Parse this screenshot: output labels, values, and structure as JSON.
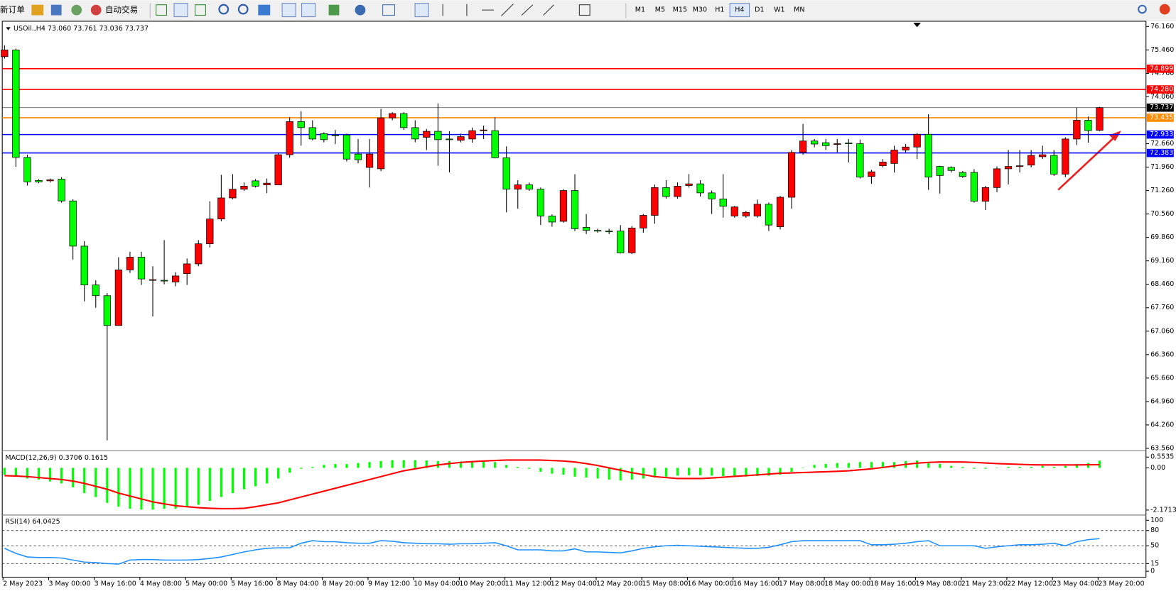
{
  "toolbar": {
    "new_order": "新订单",
    "auto_trading": "自动交易",
    "timeframes": [
      "M1",
      "M5",
      "M15",
      "M30",
      "H1",
      "H4",
      "D1",
      "W1",
      "MN"
    ],
    "active_timeframe": 5
  },
  "chart_data": {
    "type": "candlestick",
    "title": "USOil.,H4 73.060 73.761 73.036 73.737",
    "up_color": "#ff0000",
    "down_color": "#00ff00",
    "categories": [
      "2 May 2023",
      null,
      null,
      null,
      "3 May 00:00",
      null,
      null,
      null,
      "3 May 16:00",
      null,
      null,
      null,
      "4 May 08:00",
      null,
      null,
      null,
      "5 May 00:00",
      null,
      null,
      null,
      "5 May 16:00",
      null,
      null,
      null,
      "8 May 04:00",
      null,
      null,
      null,
      "8 May 20:00",
      null,
      null,
      null,
      "9 May 12:00",
      null,
      null,
      null,
      "10 May 04:00",
      null,
      null,
      null,
      "10 May 20:00",
      null,
      null,
      null,
      "11 May 12:00",
      null,
      null,
      null,
      "12 May 04:00",
      null,
      null,
      null,
      "12 May 20:00",
      null,
      null,
      null,
      "15 May 08:00",
      null,
      null,
      null,
      "16 May 00:00",
      null,
      null,
      null,
      "16 May 16:00",
      null,
      null,
      null,
      "17 May 08:00",
      null,
      null,
      null,
      "18 May 00:00",
      null,
      null,
      null,
      "18 May 16:00",
      null,
      null,
      null,
      "19 May 08:00",
      null,
      null,
      null,
      "21 May 23:00",
      null,
      null,
      null,
      "22 May 12:00",
      null,
      null,
      null,
      "23 May 04:00",
      null,
      null,
      null,
      "23 May 20:00"
    ],
    "open": [
      75.26,
      75.46,
      72.25,
      71.56,
      71.55,
      71.6,
      70.95,
      69.6,
      68.44,
      68.12,
      67.23,
      68.89,
      69.27,
      68.6,
      68.58,
      68.53,
      68.78,
      69.07,
      69.67,
      70.41,
      71.04,
      71.3,
      71.55,
      71.43,
      71.43,
      72.33,
      73.32,
      73.14,
      72.96,
      72.92,
      72.92,
      72.35,
      71.95,
      71.91,
      73.43,
      73.56,
      73.14,
      72.85,
      73.03,
      72.8,
      72.76,
      72.8,
      73.05,
      73.05,
      72.24,
      71.3,
      71.43,
      71.3,
      70.5,
      70.34,
      71.26,
      70.16,
      70.07,
      70.05,
      70.05,
      69.4,
      70.14,
      70.52,
      71.35,
      71.08,
      71.41,
      71.46,
      71.19,
      71.01,
      70.5,
      70.5,
      70.5,
      70.85,
      70.18,
      71.06,
      72.4,
      72.74,
      72.69,
      72.65,
      72.68,
      72.66,
      71.68,
      72.0,
      72.07,
      72.47,
      72.56,
      72.94,
      71.98,
      71.95,
      71.8,
      71.8,
      70.94,
      71.35,
      71.91,
      71.98,
      72.02,
      72.27,
      72.31,
      71.75,
      72.8,
      73.36,
      73.06
    ],
    "high": [
      75.6,
      75.5,
      72.33,
      71.6,
      71.62,
      71.66,
      71.0,
      69.75,
      68.58,
      68.2,
      69.27,
      69.43,
      69.43,
      69.0,
      69.78,
      68.82,
      69.23,
      69.78,
      70.94,
      71.73,
      71.75,
      71.5,
      71.6,
      71.62,
      72.38,
      73.45,
      73.63,
      73.36,
      73.0,
      73.07,
      72.96,
      72.8,
      72.8,
      73.7,
      73.6,
      73.6,
      73.36,
      73.1,
      73.86,
      73.03,
      72.96,
      73.14,
      73.2,
      73.45,
      72.58,
      71.57,
      71.5,
      71.35,
      70.55,
      71.3,
      71.75,
      70.56,
      70.12,
      70.12,
      70.23,
      70.2,
      70.56,
      71.44,
      71.57,
      71.5,
      71.75,
      71.57,
      71.26,
      71.75,
      70.8,
      70.65,
      70.99,
      70.9,
      71.1,
      72.47,
      73.25,
      72.8,
      72.8,
      72.8,
      72.8,
      72.78,
      71.88,
      72.2,
      72.6,
      72.65,
      72.98,
      73.54,
      72.0,
      71.98,
      71.84,
      71.9,
      71.4,
      71.98,
      72.47,
      72.47,
      72.47,
      72.6,
      72.47,
      72.85,
      73.74,
      73.47,
      73.761
    ],
    "low": [
      75.2,
      71.97,
      71.41,
      71.48,
      71.5,
      70.9,
      69.2,
      67.95,
      67.76,
      63.8,
      67.23,
      68.8,
      68.44,
      67.5,
      68.46,
      68.4,
      68.44,
      69.0,
      69.56,
      70.34,
      71.0,
      71.25,
      71.35,
      71.18,
      71.43,
      72.24,
      72.6,
      72.76,
      72.7,
      72.65,
      72.13,
      72.07,
      71.35,
      71.84,
      73.36,
      73.07,
      72.7,
      72.47,
      72.0,
      71.8,
      72.7,
      72.69,
      72.8,
      72.22,
      70.61,
      70.72,
      71.25,
      70.23,
      70.18,
      70.3,
      70.05,
      69.96,
      70.0,
      69.96,
      69.38,
      69.36,
      70.0,
      70.27,
      71.02,
      71.02,
      71.35,
      71.08,
      70.56,
      70.45,
      70.45,
      70.45,
      70.45,
      70.05,
      70.1,
      70.72,
      72.33,
      72.55,
      72.47,
      72.4,
      72.1,
      71.62,
      71.46,
      71.95,
      71.8,
      72.4,
      72.2,
      71.28,
      71.17,
      71.8,
      71.64,
      70.9,
      70.68,
      71.21,
      71.44,
      71.8,
      71.95,
      72.2,
      71.7,
      71.66,
      72.62,
      72.69,
      73.036
    ],
    "close": [
      75.46,
      72.25,
      71.52,
      71.52,
      71.58,
      70.95,
      69.6,
      68.44,
      68.12,
      67.23,
      68.89,
      69.27,
      68.62,
      68.6,
      68.56,
      68.71,
      69.07,
      69.67,
      70.41,
      71.04,
      71.3,
      71.39,
      71.39,
      71.48,
      72.33,
      73.32,
      73.14,
      72.8,
      72.78,
      72.9,
      72.2,
      72.18,
      72.35,
      73.43,
      73.56,
      73.14,
      72.8,
      73.03,
      72.78,
      72.78,
      72.87,
      73.05,
      73.07,
      72.24,
      71.3,
      71.43,
      71.3,
      70.5,
      70.32,
      71.26,
      70.12,
      70.07,
      70.05,
      70.03,
      69.4,
      70.14,
      70.52,
      71.35,
      71.08,
      71.39,
      71.46,
      71.19,
      71.01,
      70.79,
      70.77,
      70.61,
      70.85,
      70.23,
      71.06,
      72.4,
      72.74,
      72.65,
      72.6,
      72.66,
      72.67,
      71.66,
      71.82,
      72.11,
      72.47,
      72.56,
      72.94,
      71.66,
      71.71,
      71.86,
      71.68,
      70.94,
      71.35,
      71.91,
      71.98,
      72.0,
      72.31,
      72.33,
      71.75,
      72.8,
      73.36,
      73.05,
      73.737
    ],
    "ylim": [
      63.56,
      76.16
    ],
    "yticks": [
      {
        "value": 76.16,
        "label": "76.160"
      },
      {
        "value": 75.46,
        "label": "75.460"
      },
      {
        "value": 74.76,
        "label": "74.760"
      },
      {
        "value": 74.06,
        "label": "74.060"
      },
      {
        "value": 72.66,
        "label": "72.660"
      },
      {
        "value": 71.96,
        "label": "71.960"
      },
      {
        "value": 71.26,
        "label": "71.260"
      },
      {
        "value": 70.56,
        "label": "70.560"
      },
      {
        "value": 69.86,
        "label": "69.860"
      },
      {
        "value": 69.16,
        "label": "69.160"
      },
      {
        "value": 68.46,
        "label": "68.460"
      },
      {
        "value": 67.76,
        "label": "67.760"
      },
      {
        "value": 67.06,
        "label": "67.060"
      },
      {
        "value": 66.36,
        "label": "66.360"
      },
      {
        "value": 65.66,
        "label": "65.660"
      },
      {
        "value": 64.96,
        "label": "64.960"
      },
      {
        "value": 64.26,
        "label": "64.260"
      },
      {
        "value": 63.56,
        "label": "63.560"
      }
    ],
    "hlines": [
      {
        "value": 74.899,
        "label": "74.899",
        "color": "#ff0000"
      },
      {
        "value": 74.28,
        "label": "74.280",
        "color": "#ff0000"
      },
      {
        "value": 73.737,
        "label": "73.737",
        "color": "#000000"
      },
      {
        "value": 73.435,
        "label": "73.435",
        "color": "#ff8c00"
      },
      {
        "value": 72.933,
        "label": "72.933",
        "color": "#0000ff"
      },
      {
        "value": 72.383,
        "label": "72.383",
        "color": "#0000ff"
      }
    ],
    "macd": {
      "label": "MACD(12,26,9) 0.3706 0.1615",
      "hist_color": "#00ff00",
      "signal_color": "#ff0000",
      "ylim": [
        -2.39,
        0.81
      ],
      "yticks": [
        0.5535,
        {
          "value": 0,
          "label": "0.00"
        },
        -2.1713
      ],
      "hist": [
        -0.35,
        -0.45,
        -0.55,
        -0.6,
        -0.7,
        -0.8,
        -1.0,
        -1.3,
        -1.5,
        -1.8,
        -2.0,
        -2.1,
        -2.15,
        -2.15,
        -2.1,
        -2.1,
        -2.0,
        -1.9,
        -1.7,
        -1.5,
        -1.3,
        -1.1,
        -0.95,
        -0.8,
        -0.55,
        -0.25,
        -0.05,
        0.05,
        0.15,
        0.2,
        0.2,
        0.25,
        0.3,
        0.35,
        0.4,
        0.4,
        0.4,
        0.38,
        0.35,
        0.35,
        0.33,
        0.32,
        0.33,
        0.3,
        0.15,
        0.05,
        -0.05,
        -0.2,
        -0.3,
        -0.35,
        -0.45,
        -0.5,
        -0.55,
        -0.6,
        -0.65,
        -0.6,
        -0.55,
        -0.5,
        -0.45,
        -0.4,
        -0.38,
        -0.38,
        -0.4,
        -0.42,
        -0.45,
        -0.45,
        -0.42,
        -0.4,
        -0.35,
        -0.2,
        0.0,
        0.15,
        0.2,
        0.25,
        0.25,
        0.3,
        0.3,
        0.3,
        0.3,
        0.35,
        0.38,
        0.3,
        0.2,
        0.1,
        0.05,
        -0.05,
        -0.05,
        0.0,
        0.05,
        0.05,
        0.05,
        0.1,
        0.05,
        0.1,
        0.2,
        0.25,
        0.3706
      ],
      "signal": [
        -0.4,
        -0.42,
        -0.45,
        -0.5,
        -0.55,
        -0.6,
        -0.68,
        -0.8,
        -0.95,
        -1.1,
        -1.3,
        -1.45,
        -1.6,
        -1.75,
        -1.85,
        -1.95,
        -2.0,
        -2.05,
        -2.08,
        -2.1,
        -2.1,
        -2.08,
        -2.0,
        -1.9,
        -1.8,
        -1.65,
        -1.5,
        -1.35,
        -1.2,
        -1.05,
        -0.9,
        -0.75,
        -0.6,
        -0.45,
        -0.3,
        -0.15,
        -0.05,
        0.05,
        0.15,
        0.22,
        0.28,
        0.32,
        0.35,
        0.38,
        0.4,
        0.4,
        0.4,
        0.4,
        0.38,
        0.35,
        0.3,
        0.22,
        0.12,
        0.0,
        -0.12,
        -0.25,
        -0.35,
        -0.45,
        -0.5,
        -0.55,
        -0.55,
        -0.55,
        -0.52,
        -0.48,
        -0.44,
        -0.4,
        -0.36,
        -0.32,
        -0.28,
        -0.26,
        -0.24,
        -0.22,
        -0.2,
        -0.18,
        -0.15,
        -0.1,
        -0.05,
        0.02,
        0.1,
        0.18,
        0.24,
        0.28,
        0.3,
        0.3,
        0.3,
        0.28,
        0.25,
        0.22,
        0.2,
        0.18,
        0.16,
        0.15,
        0.15,
        0.15,
        0.15,
        0.16,
        0.1615
      ]
    },
    "rsi": {
      "label": "RSI(14) 64.0425",
      "color": "#1e90ff",
      "ylim": [
        0,
        100
      ],
      "yticks": [
        100,
        80,
        50,
        15,
        0
      ],
      "values": [
        45,
        35,
        28,
        27,
        27,
        26,
        22,
        18,
        17,
        15,
        14,
        22,
        23,
        23,
        22,
        22,
        22,
        23,
        25,
        28,
        33,
        38,
        42,
        45,
        46,
        46,
        55,
        60,
        58,
        58,
        56,
        55,
        55,
        60,
        59,
        56,
        55,
        54,
        54,
        53,
        54,
        54,
        55,
        56,
        50,
        42,
        42,
        42,
        40,
        40,
        44,
        38,
        38,
        37,
        36,
        40,
        45,
        48,
        50,
        51,
        50,
        49,
        48,
        47,
        46,
        45,
        45,
        47,
        52,
        58,
        60,
        60,
        60,
        60,
        60,
        60,
        52,
        52,
        53,
        55,
        58,
        60,
        50,
        50,
        50,
        50,
        45,
        48,
        50,
        52,
        52,
        53,
        55,
        50,
        58,
        62,
        64.0425
      ]
    }
  }
}
